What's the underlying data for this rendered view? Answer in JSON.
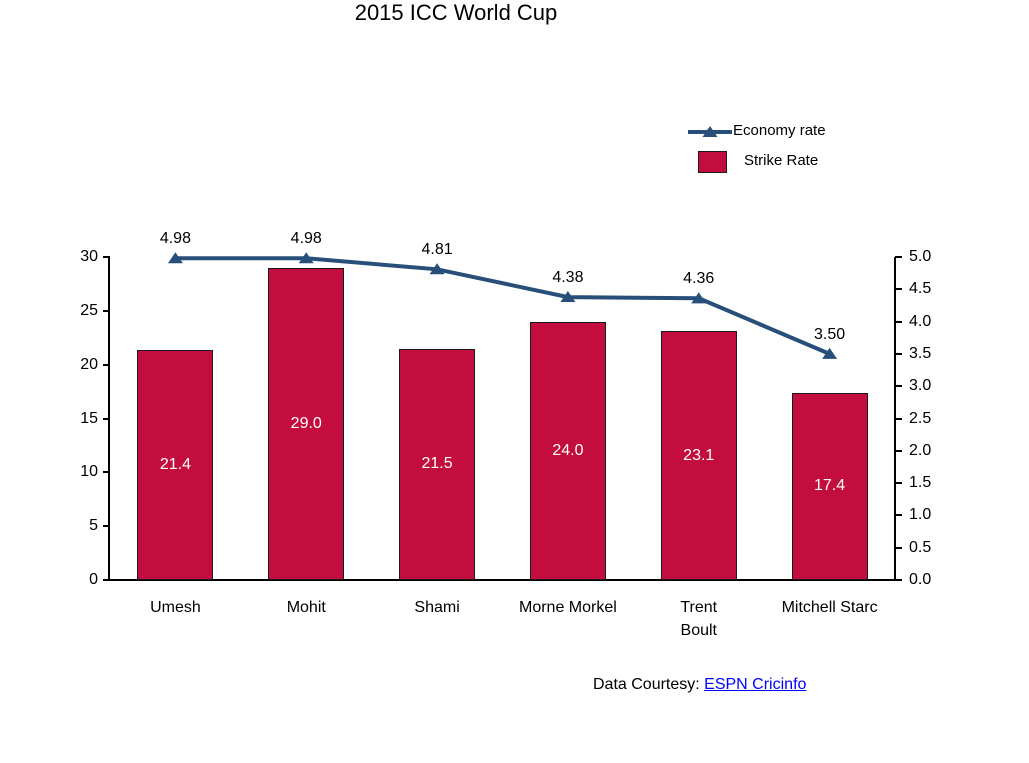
{
  "title": "2015 ICC World Cup",
  "legend": {
    "economy": {
      "label": "Economy rate"
    },
    "strike": {
      "label": "Strike Rate"
    }
  },
  "footer": {
    "prefix": "Data Courtesy: ",
    "link_text": "ESPN Cricinfo"
  },
  "colors": {
    "bar_fill": "#C20D3E",
    "bar_border": "#1a1a1a",
    "line": "#274F79",
    "link": "#0000ff"
  },
  "chart_data": {
    "type": "bar+line",
    "title": "2015 ICC World Cup",
    "categories": [
      "Umesh",
      "Mohit",
      "Shami",
      "Morne Morkel",
      "Trent\nBoult",
      "Mitchell Starc"
    ],
    "series": [
      {
        "name": "Strike Rate",
        "type": "bar",
        "axis": "left",
        "color": "#C20D3E",
        "values": [
          21.4,
          29.0,
          21.5,
          24.0,
          23.1,
          17.4
        ],
        "labels": [
          "21.4",
          "29.0",
          "21.5",
          "24.0",
          "23.1",
          "17.4"
        ]
      },
      {
        "name": "Economy rate",
        "type": "line",
        "axis": "right",
        "color": "#274F79",
        "values": [
          4.98,
          4.98,
          4.81,
          4.38,
          4.36,
          3.5
        ],
        "labels": [
          "4.98",
          "4.98",
          "4.81",
          "4.38",
          "4.36",
          "3.50"
        ]
      }
    ],
    "left_axis": {
      "min": 0,
      "max": 30,
      "tick_labels": [
        "0",
        "5",
        "10",
        "15",
        "20",
        "25",
        "30"
      ],
      "tick_values": [
        0,
        5,
        10,
        15,
        20,
        25,
        30
      ]
    },
    "right_axis": {
      "min": 0,
      "max": 5,
      "tick_labels": [
        "0.0",
        "0.5",
        "1.0",
        "1.5",
        "2.0",
        "2.5",
        "3.0",
        "3.5",
        "4.0",
        "4.5",
        "5.0"
      ],
      "tick_values": [
        0,
        0.5,
        1,
        1.5,
        2,
        2.5,
        3,
        3.5,
        4,
        4.5,
        5
      ]
    },
    "grid": false,
    "legend_position": "top-right"
  }
}
